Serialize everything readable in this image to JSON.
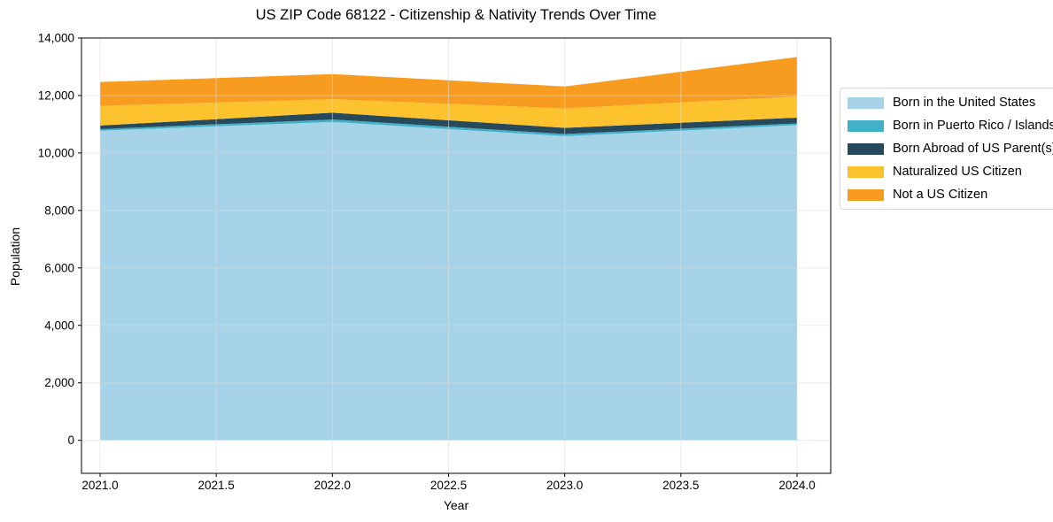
{
  "chart": {
    "title": "US ZIP Code 68122 - Citizenship & Nativity Trends Over Time",
    "xlabel": "Year",
    "ylabel": "Population"
  },
  "chart_data": {
    "type": "area",
    "stacked": true,
    "title": "US ZIP Code 68122 - Citizenship & Nativity Trends Over Time",
    "xlabel": "Year",
    "ylabel": "Population",
    "x": [
      2021,
      2022,
      2023,
      2024
    ],
    "series": [
      {
        "name": "Born in the United States",
        "color": "#a6d3e8",
        "values": [
          10775,
          11080,
          10585,
          10970
        ]
      },
      {
        "name": "Born in Puerto Rico / Islands",
        "color": "#41b0c9",
        "values": [
          55,
          85,
          75,
          60
        ]
      },
      {
        "name": "Born Abroad of US Parent(s)",
        "color": "#264a5c",
        "values": [
          125,
          235,
          215,
          200
        ]
      },
      {
        "name": "Naturalized US Citizen",
        "color": "#fcc32f",
        "values": [
          685,
          470,
          675,
          735
        ]
      },
      {
        "name": "Not a US Citizen",
        "color": "#f89c20",
        "values": [
          830,
          875,
          765,
          1375
        ]
      }
    ],
    "totals": [
      12470,
      12745,
      12315,
      13340
    ],
    "x_ticks": [
      2021.0,
      2021.5,
      2022.0,
      2022.5,
      2023.0,
      2023.5,
      2024.0
    ],
    "x_ticklabels": [
      "2021.0",
      "2021.5",
      "2022.0",
      "2022.5",
      "2023.0",
      "2023.5",
      "2024.0"
    ],
    "y_ticks": [
      0,
      2000,
      4000,
      6000,
      8000,
      10000,
      12000,
      14000
    ],
    "y_ticklabels": [
      "0",
      "2,000",
      "4,000",
      "6,000",
      "8,000",
      "10,000",
      "12,000",
      "14,000"
    ],
    "xlim": [
      2020.92,
      2024.145
    ],
    "ylim": [
      -1150,
      14000
    ],
    "grid": "on",
    "legend_position": "right outside"
  }
}
